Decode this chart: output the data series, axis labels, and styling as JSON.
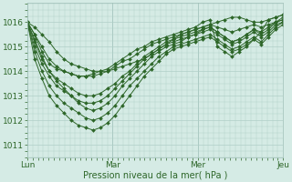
{
  "title": "",
  "xlabel": "Pression niveau de la mer( hPa )",
  "ylabel": "",
  "bg_color": "#d5ebe5",
  "grid_color": "#b0cfc8",
  "line_color": "#2d6628",
  "marker_color": "#2d6628",
  "ylim": [
    1010.5,
    1016.8
  ],
  "yticks": [
    1011,
    1012,
    1013,
    1014,
    1015,
    1016
  ],
  "day_positions": [
    0,
    48,
    96,
    144
  ],
  "day_labels": [
    "Lun",
    "Mar",
    "Mer",
    "Jeu"
  ],
  "series": [
    [
      1016.0,
      1015.8,
      1015.5,
      1015.2,
      1014.8,
      1014.5,
      1014.3,
      1014.2,
      1014.1,
      1014.0,
      1014.0,
      1014.0,
      1014.1,
      1014.2,
      1014.3,
      1014.4,
      1014.5,
      1014.7,
      1014.9,
      1015.1,
      1015.3,
      1015.5,
      1015.6,
      1015.7,
      1015.8,
      1015.9,
      1016.0,
      1016.1,
      1016.2,
      1016.2,
      1016.1,
      1016.0,
      1016.0,
      1016.1,
      1016.2,
      1016.3
    ],
    [
      1016.0,
      1015.5,
      1015.0,
      1014.5,
      1014.2,
      1014.0,
      1013.9,
      1013.8,
      1013.8,
      1013.8,
      1013.9,
      1014.0,
      1014.2,
      1014.4,
      1014.5,
      1014.7,
      1014.9,
      1015.1,
      1015.2,
      1015.3,
      1015.4,
      1015.5,
      1015.6,
      1015.7,
      1015.8,
      1015.9,
      1015.8,
      1015.7,
      1015.6,
      1015.7,
      1015.8,
      1015.9,
      1015.8,
      1015.9,
      1016.0,
      1016.1
    ],
    [
      1016.0,
      1015.2,
      1014.5,
      1014.0,
      1013.7,
      1013.5,
      1013.3,
      1013.1,
      1013.0,
      1013.0,
      1013.1,
      1013.3,
      1013.5,
      1013.8,
      1014.0,
      1014.3,
      1014.6,
      1014.8,
      1015.0,
      1015.2,
      1015.3,
      1015.4,
      1015.5,
      1015.6,
      1015.7,
      1015.8,
      1015.6,
      1015.4,
      1015.2,
      1015.3,
      1015.5,
      1015.7,
      1015.6,
      1015.8,
      1016.0,
      1016.1
    ],
    [
      1016.0,
      1015.0,
      1014.3,
      1013.8,
      1013.4,
      1013.2,
      1013.0,
      1012.8,
      1012.7,
      1012.7,
      1012.8,
      1013.0,
      1013.3,
      1013.6,
      1013.9,
      1014.2,
      1014.5,
      1014.7,
      1014.9,
      1015.1,
      1015.2,
      1015.3,
      1015.4,
      1015.5,
      1015.6,
      1015.7,
      1015.5,
      1015.3,
      1015.1,
      1015.2,
      1015.4,
      1015.6,
      1015.4,
      1015.6,
      1015.9,
      1016.0
    ],
    [
      1016.0,
      1014.8,
      1014.0,
      1013.4,
      1013.0,
      1012.7,
      1012.5,
      1012.3,
      1012.1,
      1012.0,
      1012.1,
      1012.3,
      1012.6,
      1013.0,
      1013.4,
      1013.7,
      1014.0,
      1014.3,
      1014.6,
      1014.8,
      1015.0,
      1015.1,
      1015.2,
      1015.3,
      1015.4,
      1015.5,
      1015.3,
      1015.1,
      1014.9,
      1015.0,
      1015.2,
      1015.4,
      1015.2,
      1015.5,
      1015.8,
      1016.0
    ],
    [
      1016.0,
      1014.5,
      1013.7,
      1013.0,
      1012.6,
      1012.3,
      1012.0,
      1011.8,
      1011.7,
      1011.6,
      1011.7,
      1011.9,
      1012.2,
      1012.6,
      1013.0,
      1013.4,
      1013.8,
      1014.1,
      1014.4,
      1014.7,
      1014.9,
      1015.0,
      1015.1,
      1015.2,
      1015.3,
      1015.4,
      1015.2,
      1015.0,
      1014.8,
      1014.9,
      1015.1,
      1015.3,
      1015.1,
      1015.4,
      1015.7,
      1015.9
    ],
    [
      1016.0,
      1015.5,
      1014.8,
      1014.3,
      1014.1,
      1014.0,
      1013.9,
      1013.8,
      1013.8,
      1013.9,
      1014.0,
      1014.1,
      1014.3,
      1014.5,
      1014.7,
      1014.9,
      1015.0,
      1015.2,
      1015.3,
      1015.4,
      1015.5,
      1015.6,
      1015.7,
      1015.8,
      1016.0,
      1016.1,
      1015.0,
      1014.8,
      1014.6,
      1014.8,
      1015.0,
      1015.3,
      1015.6,
      1016.1,
      1016.2,
      1016.3
    ],
    [
      1016.0,
      1015.3,
      1014.6,
      1014.0,
      1013.6,
      1013.3,
      1013.0,
      1012.7,
      1012.5,
      1012.4,
      1012.5,
      1012.7,
      1013.0,
      1013.4,
      1013.7,
      1014.0,
      1014.3,
      1014.6,
      1014.8,
      1015.0,
      1015.1,
      1015.2,
      1015.4,
      1015.5,
      1015.7,
      1015.8,
      1015.6,
      1015.4,
      1015.2,
      1015.3,
      1015.5,
      1015.7,
      1015.5,
      1015.7,
      1016.0,
      1016.2
    ]
  ]
}
